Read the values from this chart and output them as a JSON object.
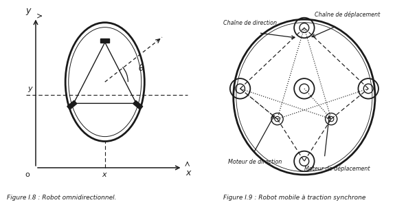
{
  "fig_width": 5.65,
  "fig_height": 2.79,
  "bg_color": "#ffffff",
  "left_caption": "Figure I.8 : Robot omnidirectionnel.",
  "right_caption": "Figure I.9 : Robot mobile à traction synchrone",
  "black": "#1a1a1a"
}
